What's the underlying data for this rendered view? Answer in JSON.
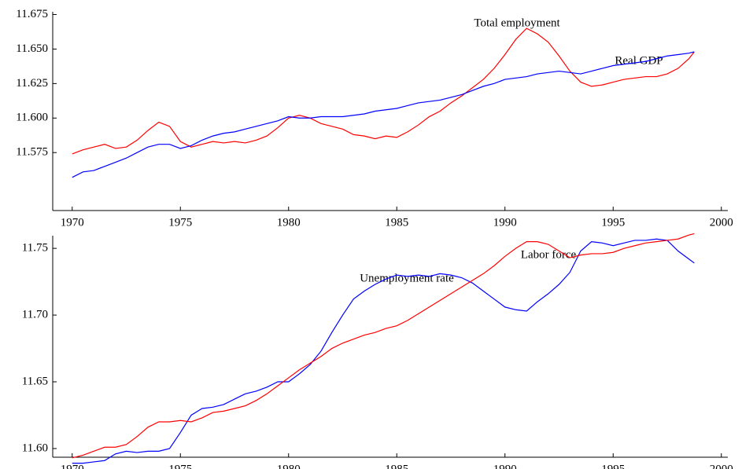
{
  "chart_data": [
    {
      "type": "line",
      "x": [
        1970,
        1970.5,
        1971,
        1971.5,
        1972,
        1972.5,
        1973,
        1973.5,
        1974,
        1974.5,
        1975,
        1975.5,
        1976,
        1976.5,
        1977,
        1977.5,
        1978,
        1978.5,
        1979,
        1979.5,
        1980,
        1980.5,
        1981,
        1981.5,
        1982,
        1982.5,
        1983,
        1983.5,
        1984,
        1984.5,
        1985,
        1985.5,
        1986,
        1986.5,
        1987,
        1987.5,
        1988,
        1988.5,
        1989,
        1989.5,
        1990,
        1990.5,
        1991,
        1991.5,
        1992,
        1992.5,
        1993,
        1993.5,
        1994,
        1994.5,
        1995,
        1995.5,
        1996,
        1996.5,
        1997,
        1997.5,
        1998,
        1998.5,
        1998.75
      ],
      "series": [
        {
          "name": "Total employment",
          "color": "#ff0000",
          "values": [
            11.574,
            11.577,
            11.579,
            11.581,
            11.578,
            11.579,
            11.584,
            11.591,
            11.597,
            11.594,
            11.583,
            11.579,
            11.581,
            11.583,
            11.582,
            11.583,
            11.582,
            11.584,
            11.587,
            11.593,
            11.6,
            11.602,
            11.6,
            11.596,
            11.594,
            11.592,
            11.588,
            11.587,
            11.585,
            11.587,
            11.586,
            11.59,
            11.595,
            11.601,
            11.605,
            11.611,
            11.616,
            11.622,
            11.628,
            11.636,
            11.646,
            11.657,
            11.665,
            11.661,
            11.655,
            11.645,
            11.634,
            11.626,
            11.623,
            11.624,
            11.626,
            11.628,
            11.629,
            11.63,
            11.63,
            11.632,
            11.636,
            11.643,
            11.648
          ]
        },
        {
          "name": "Real GDP",
          "color": "#0000ff",
          "values": [
            11.557,
            11.561,
            11.562,
            11.565,
            11.568,
            11.571,
            11.575,
            11.579,
            11.581,
            11.581,
            11.578,
            11.58,
            11.584,
            11.587,
            11.589,
            11.59,
            11.592,
            11.594,
            11.596,
            11.598,
            11.601,
            11.6,
            11.6,
            11.601,
            11.601,
            11.601,
            11.602,
            11.603,
            11.605,
            11.606,
            11.607,
            11.609,
            11.611,
            11.612,
            11.613,
            11.615,
            11.617,
            11.62,
            11.623,
            11.625,
            11.628,
            11.629,
            11.63,
            11.632,
            11.633,
            11.634,
            11.633,
            11.632,
            11.634,
            11.636,
            11.638,
            11.639,
            11.64,
            11.641,
            11.643,
            11.645,
            11.646,
            11.647,
            11.648
          ]
        }
      ],
      "xlim": [
        1969.1,
        2000.3
      ],
      "xticks": [
        1970,
        1975,
        1980,
        1985,
        1990,
        1995,
        2000
      ],
      "ylim": [
        11.533,
        11.677
      ],
      "yticks": [
        11.575,
        {
          "value": 11.6,
          "label": "11.600"
        },
        11.625,
        {
          "value": 11.65,
          "label": "11.650"
        },
        11.675
      ]
    },
    {
      "type": "line",
      "x": [
        1970,
        1970.5,
        1971,
        1971.5,
        1972,
        1972.5,
        1973,
        1973.5,
        1974,
        1974.5,
        1975,
        1975.5,
        1976,
        1976.5,
        1977,
        1977.5,
        1978,
        1978.5,
        1979,
        1979.5,
        1980,
        1980.5,
        1981,
        1981.5,
        1982,
        1982.5,
        1983,
        1983.5,
        1984,
        1984.5,
        1985,
        1985.5,
        1986,
        1986.5,
        1987,
        1987.5,
        1988,
        1988.5,
        1989,
        1989.5,
        1990,
        1990.5,
        1991,
        1991.5,
        1992,
        1992.5,
        1993,
        1993.5,
        1994,
        1994.5,
        1995,
        1995.5,
        1996,
        1996.5,
        1997,
        1997.5,
        1998,
        1998.5,
        1998.75
      ],
      "series": [
        {
          "name": "Unemployment rate",
          "color": "#0000ff",
          "values": [
            11.589,
            11.589,
            11.59,
            11.591,
            11.596,
            11.598,
            11.597,
            11.598,
            11.598,
            11.6,
            11.612,
            11.625,
            11.63,
            11.631,
            11.633,
            11.637,
            11.641,
            11.643,
            11.646,
            11.65,
            11.65,
            11.656,
            11.663,
            11.673,
            11.687,
            11.7,
            11.712,
            11.718,
            11.723,
            11.727,
            11.73,
            11.729,
            11.73,
            11.729,
            11.731,
            11.73,
            11.728,
            11.724,
            11.718,
            11.712,
            11.706,
            11.704,
            11.703,
            11.71,
            11.716,
            11.723,
            11.732,
            11.748,
            11.755,
            11.754,
            11.752,
            11.754,
            11.756,
            11.756,
            11.757,
            11.756,
            11.748,
            11.742,
            11.739
          ]
        },
        {
          "name": "Labor force",
          "color": "#ff0000",
          "values": [
            11.593,
            11.595,
            11.598,
            11.601,
            11.601,
            11.603,
            11.609,
            11.616,
            11.62,
            11.62,
            11.621,
            11.62,
            11.623,
            11.627,
            11.628,
            11.63,
            11.632,
            11.636,
            11.641,
            11.647,
            11.653,
            11.659,
            11.664,
            11.669,
            11.675,
            11.679,
            11.682,
            11.685,
            11.687,
            11.69,
            11.692,
            11.696,
            11.701,
            11.706,
            11.711,
            11.716,
            11.721,
            11.726,
            11.731,
            11.737,
            11.744,
            11.75,
            11.755,
            11.755,
            11.753,
            11.748,
            11.743,
            11.745,
            11.746,
            11.746,
            11.747,
            11.75,
            11.752,
            11.754,
            11.755,
            11.756,
            11.757,
            11.76,
            11.761
          ]
        }
      ],
      "xlim": [
        1969.1,
        2000.3
      ],
      "xticks": [
        1970,
        1975,
        1980,
        1985,
        1990,
        1995,
        2000
      ],
      "ylim": [
        11.5935,
        11.7595
      ],
      "yticks": [
        {
          "value": 11.6,
          "label": "11.60"
        },
        11.65,
        {
          "value": 11.7,
          "label": "11.70"
        },
        11.75
      ]
    }
  ]
}
